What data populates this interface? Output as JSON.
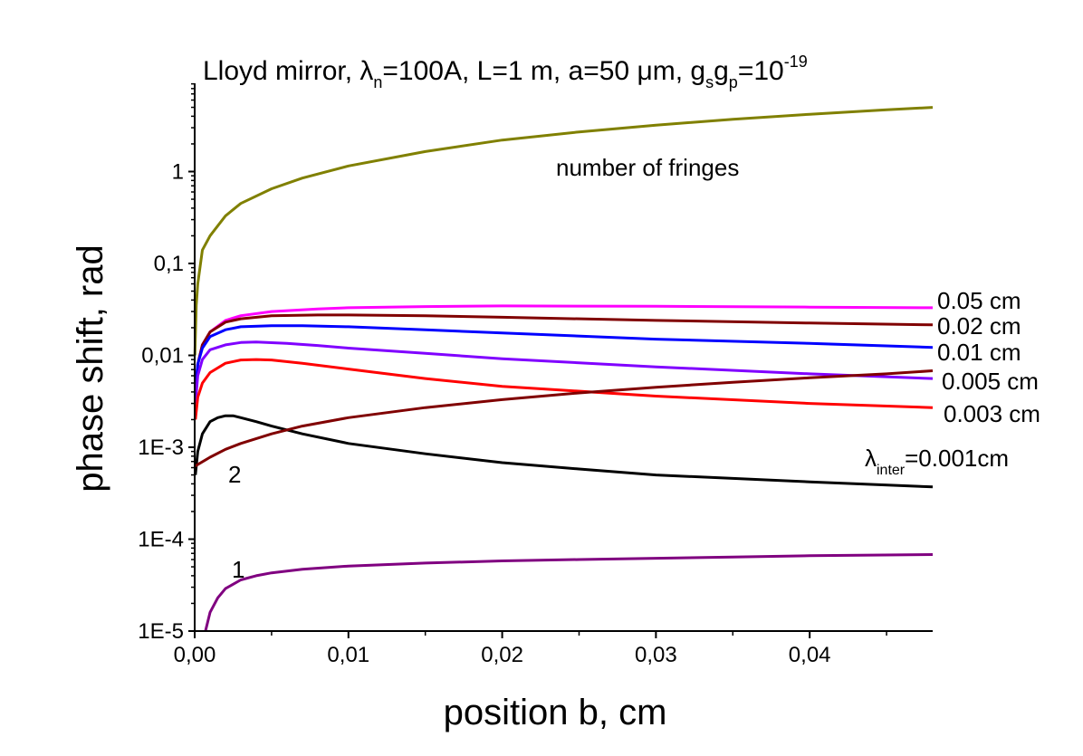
{
  "chart_data": {
    "type": "line",
    "title": {
      "prefix": "Lloyd mirror, ",
      "lambda_sym": "λ",
      "lambda_sub": "n",
      "rest": "=100A, L=1 m, a=50 ",
      "mu": "μ",
      "rest2": "m, g",
      "gs_sub": "s",
      "g2": "g",
      "gp_sub": "p",
      "eq": "=10",
      "exp": "-19"
    },
    "xlabel": "position b, cm",
    "ylabel": "phase shift, rad",
    "xlim": [
      0,
      0.048
    ],
    "ylim": [
      1e-05,
      7
    ],
    "yscale": "log",
    "x_ticks": [
      {
        "value": 0,
        "label": "0,00"
      },
      {
        "value": 0.01,
        "label": "0,01"
      },
      {
        "value": 0.02,
        "label": "0,02"
      },
      {
        "value": 0.03,
        "label": "0,03"
      },
      {
        "value": 0.04,
        "label": "0,04"
      }
    ],
    "y_ticks": [
      {
        "value": 1e-05,
        "label": "1E-5"
      },
      {
        "value": 0.0001,
        "label": "1E-4"
      },
      {
        "value": 0.001,
        "label": "1E-3"
      },
      {
        "value": 0.01,
        "label": "0,01"
      },
      {
        "value": 0.1,
        "label": "0,1"
      },
      {
        "value": 1,
        "label": "1"
      }
    ],
    "series": [
      {
        "name": "number of fringes",
        "color": "#808000",
        "x": [
          1e-05,
          0.0001,
          0.0002,
          0.0005,
          0.001,
          0.002,
          0.003,
          0.005,
          0.007,
          0.01,
          0.015,
          0.02,
          0.025,
          0.03,
          0.035,
          0.04,
          0.045,
          0.048
        ],
        "y": [
          0.01,
          0.035,
          0.06,
          0.14,
          0.2,
          0.33,
          0.45,
          0.65,
          0.85,
          1.15,
          1.65,
          2.2,
          2.7,
          3.2,
          3.7,
          4.2,
          4.7,
          5.0
        ]
      },
      {
        "name": "0.05 cm",
        "color": "#ff00ff",
        "x": [
          5e-05,
          0.0002,
          0.0005,
          0.001,
          0.002,
          0.003,
          0.005,
          0.008,
          0.01,
          0.015,
          0.02,
          0.03,
          0.04,
          0.048
        ],
        "y": [
          0.004,
          0.008,
          0.013,
          0.018,
          0.024,
          0.027,
          0.03,
          0.032,
          0.033,
          0.034,
          0.0345,
          0.0342,
          0.0335,
          0.033
        ]
      },
      {
        "name": "0.02 cm",
        "color": "#800000",
        "x": [
          5e-05,
          0.0002,
          0.0005,
          0.001,
          0.002,
          0.003,
          0.005,
          0.008,
          0.01,
          0.015,
          0.02,
          0.03,
          0.04,
          0.048
        ],
        "y": [
          0.004,
          0.008,
          0.013,
          0.018,
          0.023,
          0.025,
          0.027,
          0.0275,
          0.0275,
          0.027,
          0.026,
          0.024,
          0.0225,
          0.0215
        ]
      },
      {
        "name": "0.01 cm",
        "color": "#0000ff",
        "x": [
          5e-05,
          0.0002,
          0.0005,
          0.001,
          0.002,
          0.003,
          0.005,
          0.007,
          0.01,
          0.015,
          0.02,
          0.03,
          0.04,
          0.048
        ],
        "y": [
          0.004,
          0.008,
          0.012,
          0.016,
          0.019,
          0.0205,
          0.021,
          0.021,
          0.0205,
          0.019,
          0.0175,
          0.015,
          0.0135,
          0.0122
        ]
      },
      {
        "name": "0.005 cm",
        "color": "#8000ff",
        "x": [
          5e-05,
          0.0002,
          0.0005,
          0.001,
          0.002,
          0.003,
          0.004,
          0.006,
          0.008,
          0.01,
          0.015,
          0.02,
          0.03,
          0.04,
          0.048
        ],
        "y": [
          0.003,
          0.006,
          0.009,
          0.0115,
          0.013,
          0.0138,
          0.014,
          0.0135,
          0.0128,
          0.012,
          0.0105,
          0.0092,
          0.0075,
          0.0063,
          0.0056
        ]
      },
      {
        "name": "0.003 cm",
        "color": "#ff0000",
        "x": [
          5e-05,
          0.0002,
          0.0005,
          0.001,
          0.002,
          0.003,
          0.004,
          0.005,
          0.007,
          0.01,
          0.015,
          0.02,
          0.03,
          0.04,
          0.048
        ],
        "y": [
          0.002,
          0.0035,
          0.005,
          0.0065,
          0.0082,
          0.0089,
          0.009,
          0.0089,
          0.0082,
          0.0071,
          0.0056,
          0.0046,
          0.0036,
          0.003,
          0.0027
        ]
      },
      {
        "name": "λinter=0.001cm",
        "color": "#000000",
        "x": [
          5e-05,
          0.0002,
          0.0005,
          0.001,
          0.0015,
          0.002,
          0.0025,
          0.003,
          0.004,
          0.005,
          0.007,
          0.01,
          0.015,
          0.02,
          0.025,
          0.03,
          0.04,
          0.048
        ],
        "y": [
          0.0005,
          0.0009,
          0.0014,
          0.0019,
          0.0021,
          0.0022,
          0.0022,
          0.0021,
          0.0019,
          0.0017,
          0.0014,
          0.0011,
          0.00085,
          0.00068,
          0.00058,
          0.0005,
          0.00042,
          0.00037
        ]
      },
      {
        "name": "2",
        "color": "#800000",
        "x": [
          0,
          0.001,
          0.002,
          0.003,
          0.005,
          0.007,
          0.01,
          0.015,
          0.02,
          0.025,
          0.03,
          0.035,
          0.04,
          0.045,
          0.048
        ],
        "y": [
          0.00062,
          0.00078,
          0.00095,
          0.0011,
          0.0014,
          0.0017,
          0.0021,
          0.0027,
          0.0033,
          0.0039,
          0.0045,
          0.0051,
          0.0057,
          0.0063,
          0.0068
        ]
      },
      {
        "name": "1",
        "color": "#800080",
        "x": [
          0.0007,
          0.001,
          0.0015,
          0.002,
          0.003,
          0.004,
          0.005,
          0.007,
          0.01,
          0.015,
          0.02,
          0.025,
          0.03,
          0.035,
          0.04,
          0.048
        ],
        "y": [
          1e-05,
          1.6e-05,
          2.3e-05,
          2.9e-05,
          3.6e-05,
          4e-05,
          4.3e-05,
          4.7e-05,
          5.1e-05,
          5.5e-05,
          5.8e-05,
          6e-05,
          6.2e-05,
          6.4e-05,
          6.6e-05,
          6.8e-05
        ]
      }
    ],
    "labels": {
      "fringes": "number of fringes",
      "l005": "0.05 cm",
      "l002": "0.02 cm",
      "l001": "0.01 cm",
      "l0005": "0.005 cm",
      "l0003": "0.003 cm",
      "linter_sym": "λ",
      "linter_sub": "inter",
      "linter_rest": "=0.001cm",
      "curve2": "2",
      "curve1": "1"
    }
  }
}
